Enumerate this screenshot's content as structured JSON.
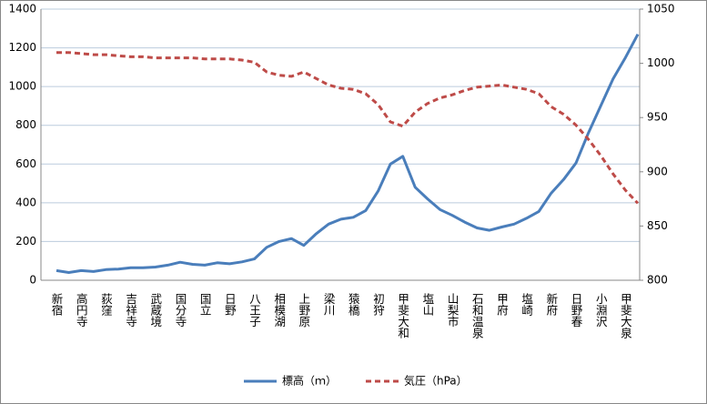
{
  "chart_data": {
    "type": "line",
    "categories": [
      "新宿",
      null,
      "高円寺",
      null,
      "荻窪",
      null,
      "吉祥寺",
      null,
      "武蔵境",
      null,
      "国分寺",
      null,
      "国立",
      null,
      "日野",
      null,
      "八王子",
      null,
      "相模湖",
      null,
      "上野原",
      null,
      "梁川",
      null,
      "猿橋",
      null,
      "初狩",
      null,
      "甲斐大和",
      null,
      "塩山",
      null,
      "山梨市",
      null,
      "石和温泉",
      null,
      "甲府",
      null,
      "塩崎",
      null,
      "新府",
      null,
      "日野春",
      null,
      "小淵沢",
      null,
      "甲斐大泉",
      null
    ],
    "series": [
      {
        "name": "標高（ｍ）",
        "color": "#4a7ebb",
        "values": [
          50,
          40,
          50,
          45,
          55,
          58,
          65,
          65,
          68,
          78,
          93,
          82,
          78,
          90,
          85,
          95,
          110,
          170,
          200,
          215,
          180,
          240,
          290,
          315,
          325,
          360,
          460,
          600,
          640,
          480,
          420,
          365,
          335,
          300,
          270,
          258,
          275,
          290,
          320,
          355,
          450,
          520,
          605,
          760,
          900,
          1040,
          1150,
          1270
        ]
      },
      {
        "name": "気圧（hPa）",
        "color": "#be4b48",
        "axis": "y2",
        "values": [
          1010,
          1010,
          1009,
          1008,
          1008,
          1007,
          1006,
          1006,
          1005,
          1005,
          1005,
          1005,
          1004,
          1004,
          1004,
          1003,
          1001,
          992,
          989,
          988,
          992,
          986,
          980,
          977,
          976,
          972,
          962,
          946,
          942,
          955,
          963,
          968,
          971,
          975,
          978,
          979,
          980,
          978,
          976,
          972,
          960,
          953,
          943,
          930,
          915,
          898,
          883,
          871
        ]
      }
    ],
    "ylim": [
      0,
      1400
    ],
    "yticks": [
      0,
      200,
      400,
      600,
      800,
      1000,
      1200,
      1400
    ],
    "y2lim": [
      800,
      1050
    ],
    "y2ticks": [
      800,
      850,
      900,
      950,
      1000,
      1050
    ],
    "grid": true,
    "legend": "bottom"
  }
}
